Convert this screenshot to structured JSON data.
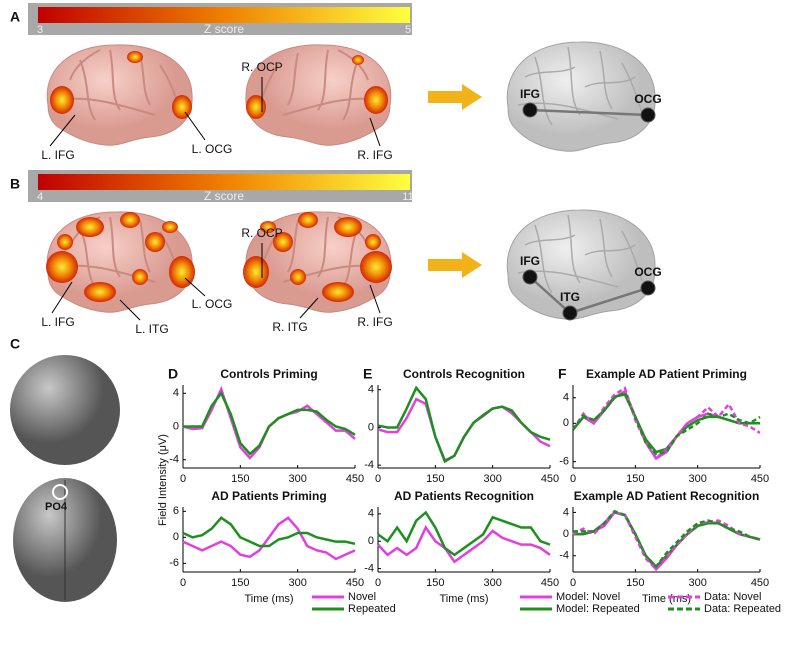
{
  "panel_letters": [
    "A",
    "B",
    "C",
    "D",
    "E",
    "F"
  ],
  "panel_a": {
    "colorbar": {
      "title": "Z score",
      "ticks": [
        3,
        5
      ]
    },
    "labels": [
      "L. IFG",
      "L. OCG",
      "R. OCP",
      "R. IFG"
    ],
    "network_nodes": [
      "IFG",
      "OCG"
    ]
  },
  "panel_b": {
    "colorbar": {
      "title": "Z score",
      "ticks": [
        4,
        11
      ]
    },
    "labels": [
      "L. IFG",
      "L. ITG",
      "L. OCG",
      "R. OCP",
      "R. ITG",
      "R. IFG"
    ],
    "network_nodes": [
      "IFG",
      "ITG",
      "OCG"
    ]
  },
  "panel_c": {
    "electrode": "PO4"
  },
  "y_axis_label": "Field Intensity (μV)",
  "chart_data": [
    {
      "type": "line",
      "title": "Controls Priming",
      "xlim": [
        0,
        450
      ],
      "xticks": [
        0,
        150,
        300,
        450
      ],
      "ylim": [
        -5,
        5
      ],
      "yticks": [
        -4,
        0,
        4
      ],
      "x": [
        0,
        25,
        50,
        75,
        100,
        125,
        150,
        175,
        200,
        225,
        250,
        275,
        300,
        325,
        350,
        375,
        400,
        425,
        450
      ],
      "series": [
        {
          "name": "Novel",
          "color": "#e040e0",
          "values": [
            0,
            -0.3,
            -0.2,
            2,
            4.5,
            1,
            -2.5,
            -3.8,
            -2.5,
            0,
            1,
            1.5,
            1.8,
            2.5,
            1.5,
            0.5,
            -0.5,
            -0.5,
            -1.5
          ]
        },
        {
          "name": "Repeated",
          "color": "#1f8f1f",
          "values": [
            0,
            0,
            0,
            2.5,
            4,
            1.5,
            -2,
            -3.3,
            -2.3,
            0,
            1,
            1.5,
            2,
            2,
            1.8,
            0.8,
            0,
            -0.3,
            -1
          ]
        }
      ]
    },
    {
      "type": "line",
      "title": "AD Patients Priming",
      "xlabel": "Time (ms)",
      "xlim": [
        0,
        450
      ],
      "xticks": [
        0,
        150,
        300,
        450
      ],
      "ylim": [
        -8,
        7
      ],
      "yticks": [
        -6,
        0,
        6
      ],
      "x": [
        0,
        25,
        50,
        75,
        100,
        125,
        150,
        175,
        200,
        225,
        250,
        275,
        300,
        325,
        350,
        375,
        400,
        425,
        450
      ],
      "series": [
        {
          "name": "Novel",
          "color": "#e040e0",
          "values": [
            -1,
            -2,
            -3,
            -2,
            -1,
            -2,
            -4,
            -4.5,
            -3,
            0,
            3,
            4.5,
            2,
            -2,
            -3,
            -3.5,
            -5,
            -4,
            -3
          ]
        },
        {
          "name": "Repeated",
          "color": "#1f8f1f",
          "values": [
            1,
            0,
            0.5,
            2,
            4.5,
            3,
            0,
            -1,
            -2,
            -2,
            -0.5,
            0,
            1,
            1,
            0,
            -0.5,
            -1,
            -1,
            -1.5
          ]
        }
      ]
    },
    {
      "type": "line",
      "title": "Controls Recognition",
      "xlim": [
        0,
        450
      ],
      "xticks": [
        0,
        150,
        300,
        450
      ],
      "ylim": [
        -4.3,
        4.5
      ],
      "yticks": [
        -4,
        0,
        4
      ],
      "x": [
        0,
        25,
        50,
        75,
        100,
        125,
        150,
        175,
        200,
        225,
        250,
        275,
        300,
        325,
        350,
        375,
        400,
        425,
        450
      ],
      "series": [
        {
          "name": "Novel",
          "color": "#e040e0",
          "values": [
            -0.2,
            -0.5,
            -0.5,
            1,
            3,
            2.5,
            -1,
            -3.5,
            -3,
            -1,
            0.5,
            1.2,
            2,
            2.2,
            1.5,
            0.5,
            -0.5,
            -1.5,
            -2
          ]
        },
        {
          "name": "Repeated",
          "color": "#1f8f1f",
          "values": [
            0.2,
            0,
            0,
            2,
            4.2,
            3,
            -1,
            -3.6,
            -3,
            -1,
            0.5,
            1.3,
            2,
            2.2,
            1.8,
            0.5,
            -0.5,
            -1,
            -1.3
          ]
        }
      ]
    },
    {
      "type": "line",
      "title": "AD Patients Recognition",
      "xlabel": "Time (ms)",
      "xlim": [
        0,
        450
      ],
      "xticks": [
        0,
        150,
        300,
        450
      ],
      "ylim": [
        -4.5,
        5
      ],
      "yticks": [
        -4,
        0,
        4
      ],
      "x": [
        0,
        25,
        50,
        75,
        100,
        125,
        150,
        175,
        200,
        225,
        250,
        275,
        300,
        325,
        350,
        375,
        400,
        425,
        450
      ],
      "series": [
        {
          "name": "Novel",
          "color": "#e040e0",
          "values": [
            -0.5,
            -2,
            -1,
            -2,
            -1,
            2,
            0,
            -1,
            -3,
            -2,
            -1,
            0,
            1.5,
            0.5,
            0,
            -0.5,
            -0.5,
            -1,
            -2
          ]
        },
        {
          "name": "Repeated",
          "color": "#1f8f1f",
          "values": [
            1,
            0,
            2,
            0,
            3,
            4.2,
            2,
            -1,
            -2,
            -1,
            0,
            1,
            3.5,
            3,
            2.5,
            2,
            2,
            0,
            -0.5
          ]
        }
      ]
    },
    {
      "type": "line",
      "title": "Example AD Patient Priming",
      "xlim": [
        0,
        450
      ],
      "xticks": [
        0,
        150,
        300,
        450
      ],
      "ylim": [
        -7,
        6
      ],
      "yticks": [
        -6,
        0,
        4
      ],
      "x": [
        0,
        25,
        50,
        75,
        100,
        125,
        150,
        175,
        200,
        225,
        250,
        275,
        300,
        325,
        350,
        375,
        400,
        425,
        450
      ],
      "series": [
        {
          "name": "Model: Novel",
          "color": "#e040e0",
          "dash": false,
          "values": [
            -1,
            1,
            0,
            2,
            4,
            5,
            1,
            -3,
            -5.5,
            -4.5,
            -2,
            0,
            1,
            1.5,
            1,
            0.5,
            0,
            0,
            0
          ]
        },
        {
          "name": "Model: Repeated",
          "color": "#1f8f1f",
          "dash": false,
          "values": [
            -1,
            1,
            0.5,
            2,
            4.2,
            4.5,
            1,
            -2.5,
            -4.5,
            -4,
            -2,
            -0.5,
            0.5,
            1,
            1,
            0.5,
            0,
            0,
            0
          ]
        },
        {
          "name": "Data: Novel",
          "color": "#e040e0",
          "dash": true,
          "values": [
            -1,
            1.5,
            0,
            2.5,
            4.5,
            5.5,
            0.5,
            -3,
            -5.5,
            -4,
            -2,
            0,
            1,
            2.5,
            1,
            3,
            0,
            -0.5,
            -1.5
          ]
        },
        {
          "name": "Data: Repeated",
          "color": "#1f8f1f",
          "dash": true,
          "values": [
            -1,
            1.2,
            0.5,
            2,
            4,
            4.8,
            1,
            -3,
            -4.8,
            -4.5,
            -2,
            -1,
            0,
            1.5,
            1,
            1.5,
            0.5,
            0,
            1
          ]
        }
      ]
    },
    {
      "type": "line",
      "title": "Example AD Patient Recognition",
      "xlabel": "Time (ms)",
      "xlim": [
        0,
        450
      ],
      "xticks": [
        0,
        150,
        300,
        450
      ],
      "ylim": [
        -7,
        5
      ],
      "yticks": [
        -4,
        0,
        4
      ],
      "x": [
        0,
        25,
        50,
        75,
        100,
        125,
        150,
        175,
        200,
        225,
        250,
        275,
        300,
        325,
        350,
        375,
        400,
        425,
        450
      ],
      "series": [
        {
          "name": "Model: Novel",
          "color": "#e040e0",
          "dash": false,
          "values": [
            0,
            0,
            0.5,
            1.5,
            4,
            3.5,
            0,
            -4,
            -6.5,
            -4.5,
            -2,
            0,
            1.5,
            2.2,
            2,
            1,
            0,
            -0.5,
            -1
          ]
        },
        {
          "name": "Model: Repeated",
          "color": "#1f8f1f",
          "dash": false,
          "values": [
            0,
            0,
            0.5,
            2,
            4,
            3.5,
            0,
            -4,
            -6,
            -4,
            -2,
            0,
            1.5,
            2,
            2,
            1,
            0,
            -0.5,
            -1
          ]
        },
        {
          "name": "Data: Novel",
          "color": "#e040e0",
          "dash": true,
          "values": [
            0,
            1,
            0,
            2,
            4,
            3.5,
            -0.5,
            -4.5,
            -6.5,
            -4,
            -2,
            0,
            2,
            2.2,
            2.5,
            1.5,
            0,
            -0.5,
            -1
          ]
        },
        {
          "name": "Data: Repeated",
          "color": "#1f8f1f",
          "dash": true,
          "values": [
            0.5,
            0.5,
            0.5,
            2,
            4.2,
            3.5,
            0,
            -4,
            -6,
            -3.5,
            -1.5,
            0.5,
            2,
            2.5,
            2,
            1,
            0.5,
            -0.5,
            -1
          ]
        }
      ]
    }
  ]
}
